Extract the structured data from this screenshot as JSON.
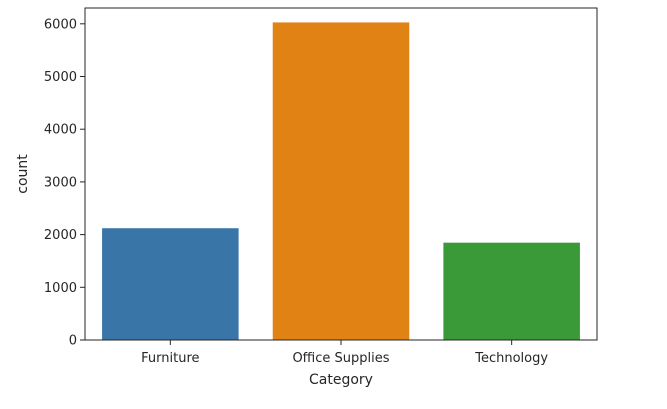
{
  "chart_data": {
    "type": "bar",
    "title": "",
    "xlabel": "Category",
    "ylabel": "count",
    "categories": [
      "Furniture",
      "Office Supplies",
      "Technology"
    ],
    "values": [
      2121,
      6026,
      1847
    ],
    "colors": [
      "#3a75a8",
      "#e08214",
      "#3b9a38"
    ],
    "ylim": [
      0,
      6300
    ],
    "yticks": [
      0,
      1000,
      2000,
      3000,
      4000,
      5000,
      6000
    ],
    "grid": false,
    "legend": "none"
  }
}
